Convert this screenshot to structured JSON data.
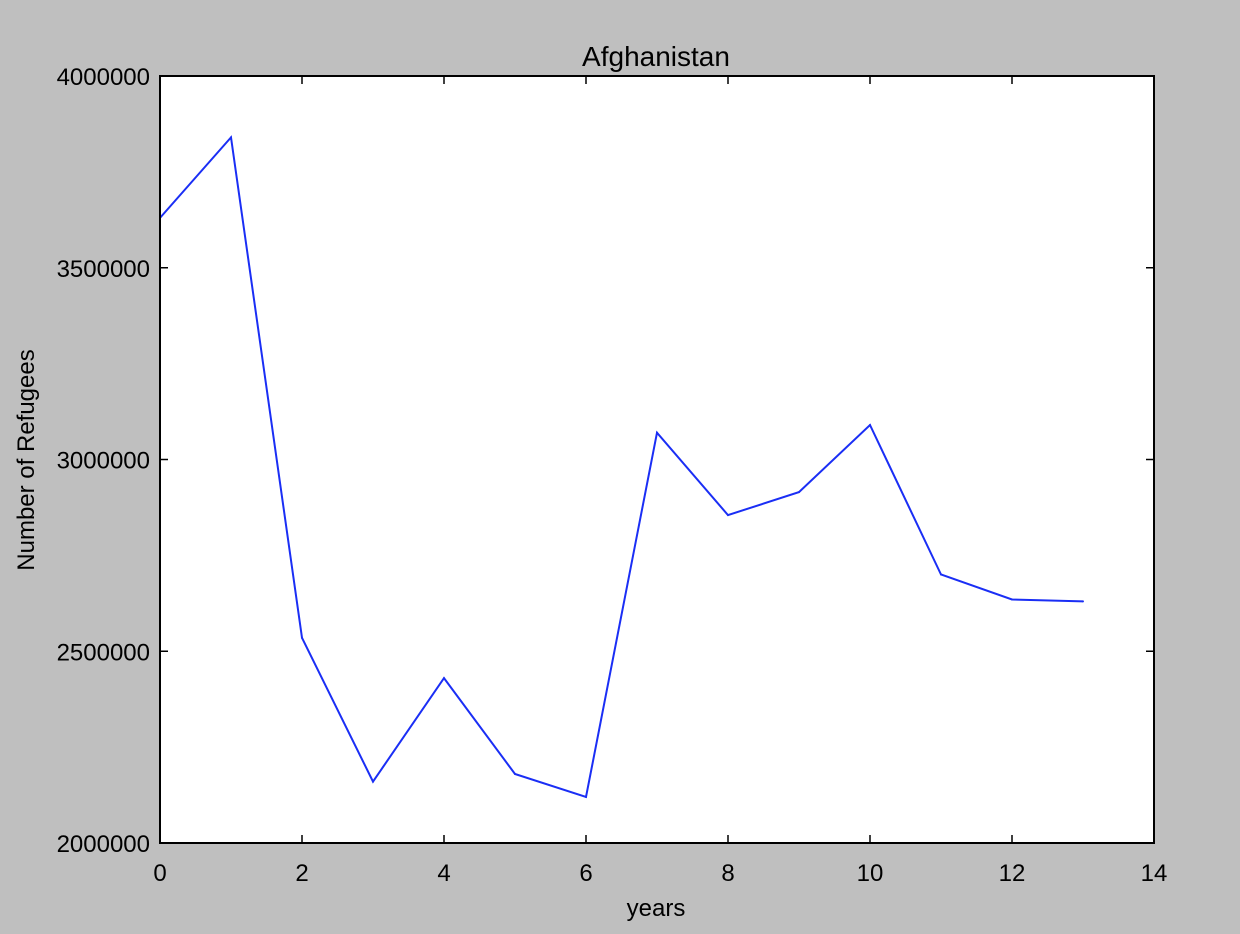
{
  "chart_data": {
    "type": "line",
    "title": "Afghanistan",
    "xlabel": "years",
    "ylabel": "Number of Refugees",
    "xlim": [
      0,
      14
    ],
    "ylim": [
      2000000,
      4000000
    ],
    "xticks": [
      0,
      2,
      4,
      6,
      8,
      10,
      12,
      14
    ],
    "yticks": [
      2000000,
      2500000,
      3000000,
      3500000,
      4000000
    ],
    "xtick_labels": [
      "0",
      "2",
      "4",
      "6",
      "8",
      "10",
      "12",
      "14"
    ],
    "ytick_labels": [
      "2000000",
      "2500000",
      "3000000",
      "3500000",
      "4000000"
    ],
    "grid": false,
    "series": [
      {
        "x": [
          0,
          1,
          2,
          3,
          4,
          5,
          6,
          7,
          8,
          9,
          10,
          11,
          12,
          13
        ],
        "values": [
          3630000,
          3840000,
          2535000,
          2160000,
          2430000,
          2180000,
          2120000,
          3070000,
          2855000,
          2915000,
          3090000,
          2700000,
          2635000,
          2630000
        ]
      }
    ]
  },
  "colors": {
    "figure_background": "#bfbfbf",
    "axes_background": "#ffffff",
    "line": "#1a2ef5"
  }
}
